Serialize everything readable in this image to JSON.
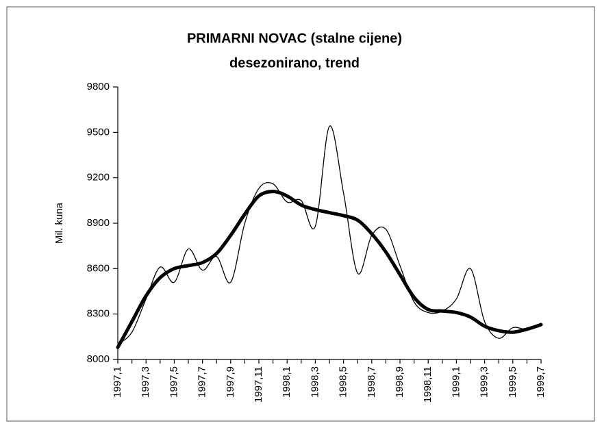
{
  "chart_data": {
    "type": "line",
    "title": "PRIMARNI NOVAC  (stalne cijene)",
    "subtitle": "desezonirano, trend",
    "y_label": "Mil. kuna",
    "categories": [
      "1997,1",
      null,
      "1997,3",
      null,
      "1997,5",
      null,
      "1997,7",
      null,
      "1997,9",
      null,
      "1997,11",
      null,
      "1998,1",
      null,
      "1998,3",
      null,
      "1998,5",
      null,
      "1998,7",
      null,
      "1998,9",
      null,
      "1998,11",
      null,
      "1999,1",
      null,
      "1999,3",
      null,
      "1999,5",
      null,
      "1999,7"
    ],
    "series": [
      {
        "color": "#000000",
        "values": [
          8100,
          8180,
          8400,
          8610,
          8510,
          8730,
          8590,
          8680,
          8510,
          8900,
          9130,
          9160,
          9040,
          9050,
          8880,
          9540,
          9100,
          8570,
          8820,
          8860,
          8620,
          8380,
          8310,
          8320,
          8400,
          8600,
          8250,
          8140,
          8210,
          8200,
          8240
        ]
      },
      {
        "color": "#000000",
        "values": [
          8080,
          8250,
          8420,
          8540,
          8600,
          8620,
          8640,
          8700,
          8820,
          8960,
          9080,
          9110,
          9080,
          9020,
          8990,
          8970,
          8950,
          8920,
          8830,
          8710,
          8560,
          8410,
          8330,
          8320,
          8310,
          8280,
          8220,
          8190,
          8180,
          8200,
          8230
        ]
      }
    ],
    "ylim": [
      8000,
      9800
    ],
    "yticks": [
      8000,
      8300,
      8600,
      8900,
      9200,
      9500,
      9800
    ],
    "grid": false
  }
}
